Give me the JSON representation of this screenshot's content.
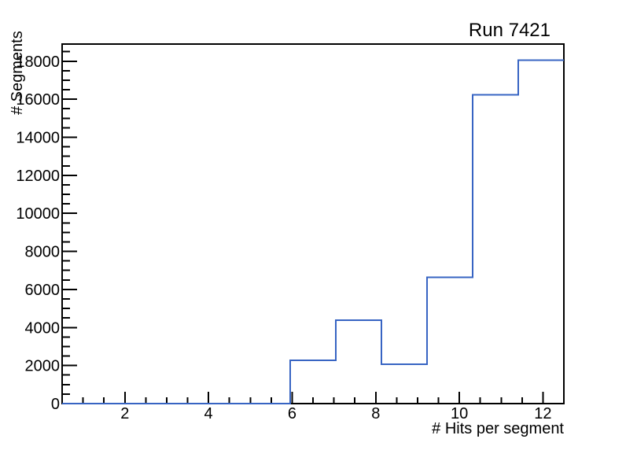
{
  "chart_data": {
    "type": "histogram",
    "title": "Run 7421",
    "xlabel": "# Hits per segment",
    "ylabel": "# Segments",
    "xlim": [
      0.5,
      12.5
    ],
    "ylim": [
      0,
      18900
    ],
    "n_bins": 11,
    "bin_edges": [
      0.5,
      1.5909,
      2.6818,
      3.7727,
      4.8636,
      5.9545,
      7.0455,
      8.1364,
      9.2273,
      10.3182,
      11.4091,
      12.5
    ],
    "values": [
      0,
      0,
      0,
      0,
      0,
      2280,
      4390,
      2060,
      6630,
      16230,
      18050
    ],
    "x_major_ticks": [
      2,
      4,
      6,
      8,
      10,
      12
    ],
    "x_minor_step": 0.5,
    "y_major_ticks": [
      0,
      2000,
      4000,
      6000,
      8000,
      10000,
      12000,
      14000,
      16000,
      18000
    ],
    "y_minor_step": 500,
    "grid": "off",
    "legend": "none",
    "line_color": "#3764c3",
    "axis_color": "#000000",
    "background_color": "#ffffff"
  }
}
